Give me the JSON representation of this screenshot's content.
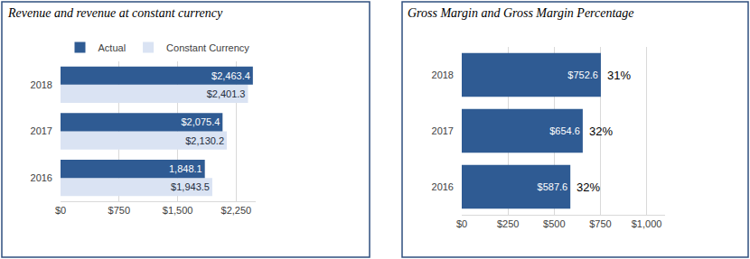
{
  "chart_data": [
    {
      "type": "bar",
      "title": "Revenue and revenue at constant currency",
      "orientation": "horizontal",
      "categories": [
        "2016",
        "2017",
        "2018"
      ],
      "series": [
        {
          "name": "Actual",
          "color": "#2f5b93",
          "values": [
            1848.1,
            2075.4,
            2463.4
          ],
          "value_labels": [
            "1,848.1",
            "$2,075.4",
            "$2,463.4"
          ]
        },
        {
          "name": "Constant Currency",
          "color": "#dae3f3",
          "values": [
            1943.5,
            2130.2,
            2401.3
          ],
          "value_labels": [
            "$1,943.5",
            "$2,130.2",
            "$2,401.3"
          ]
        }
      ],
      "xlim": [
        0,
        2500
      ],
      "xticks": [
        {
          "value": 0,
          "label": "$0"
        },
        {
          "value": 750,
          "label": "$750"
        },
        {
          "value": 1500,
          "label": "$1,500"
        },
        {
          "value": 2250,
          "label": "$2,250"
        }
      ],
      "grid": true,
      "legend": "top",
      "data_labels": true
    },
    {
      "type": "bar",
      "title": "Gross Margin and Gross Margin Percentage",
      "orientation": "horizontal",
      "categories": [
        "2016",
        "2017",
        "2018"
      ],
      "values": [
        587.6,
        654.6,
        752.6
      ],
      "value_labels": [
        "$587.6",
        "$654.6",
        "$752.6"
      ],
      "color": "#2f5b93",
      "xlim": [
        0,
        1100
      ],
      "xticks": [
        {
          "value": 0,
          "label": "$0"
        },
        {
          "value": 250,
          "label": "$250"
        },
        {
          "value": 500,
          "label": "$500"
        },
        {
          "value": 750,
          "label": "$750"
        },
        {
          "value": 1000,
          "label": "$1,000"
        }
      ],
      "grid": true,
      "data_labels": true,
      "annotations": [
        {
          "category": "2016",
          "text": "32%"
        },
        {
          "category": "2017",
          "text": "32%"
        },
        {
          "category": "2018",
          "text": "31%"
        }
      ]
    }
  ]
}
